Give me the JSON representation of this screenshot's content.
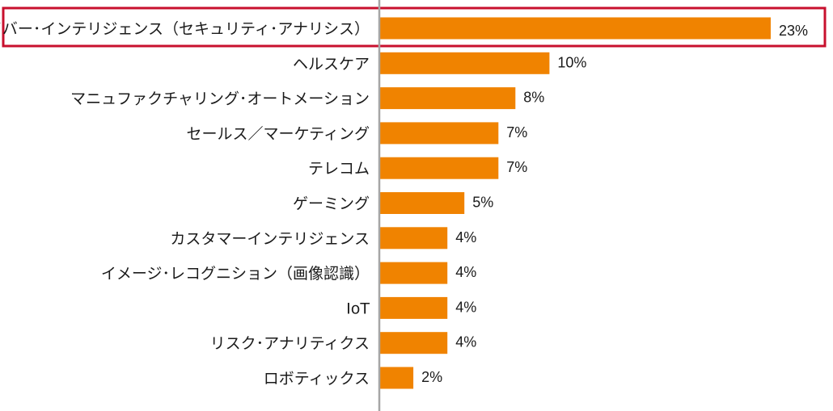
{
  "chart_data": {
    "type": "bar",
    "orientation": "horizontal",
    "categories": [
      "サイバー･インテリジェンス（セキュリティ･アナリシス）",
      "ヘルスケア",
      "マニュファクチャリング･オートメーション",
      "セールス／マーケティング",
      "テレコム",
      "ゲーミング",
      "カスタマーインテリジェンス",
      "イメージ･レコグニション（画像認識）",
      "IoT",
      "リスク･アナリティクス",
      "ロボティックス"
    ],
    "values": [
      23,
      10,
      8,
      7,
      7,
      5,
      4,
      4,
      4,
      4,
      2
    ],
    "value_labels": [
      "23%",
      "10%",
      "8%",
      "7%",
      "7%",
      "5%",
      "4%",
      "4%",
      "4%",
      "4%",
      "2%"
    ],
    "unit": "%",
    "xlim": [
      0,
      23
    ],
    "grid": false,
    "legend": "none",
    "highlighted_category_index": 0,
    "colors": {
      "bar": "#F08300",
      "axis": "#A6A6A6",
      "highlight_border": "#C8102E",
      "text": "#1A1A1A"
    }
  }
}
